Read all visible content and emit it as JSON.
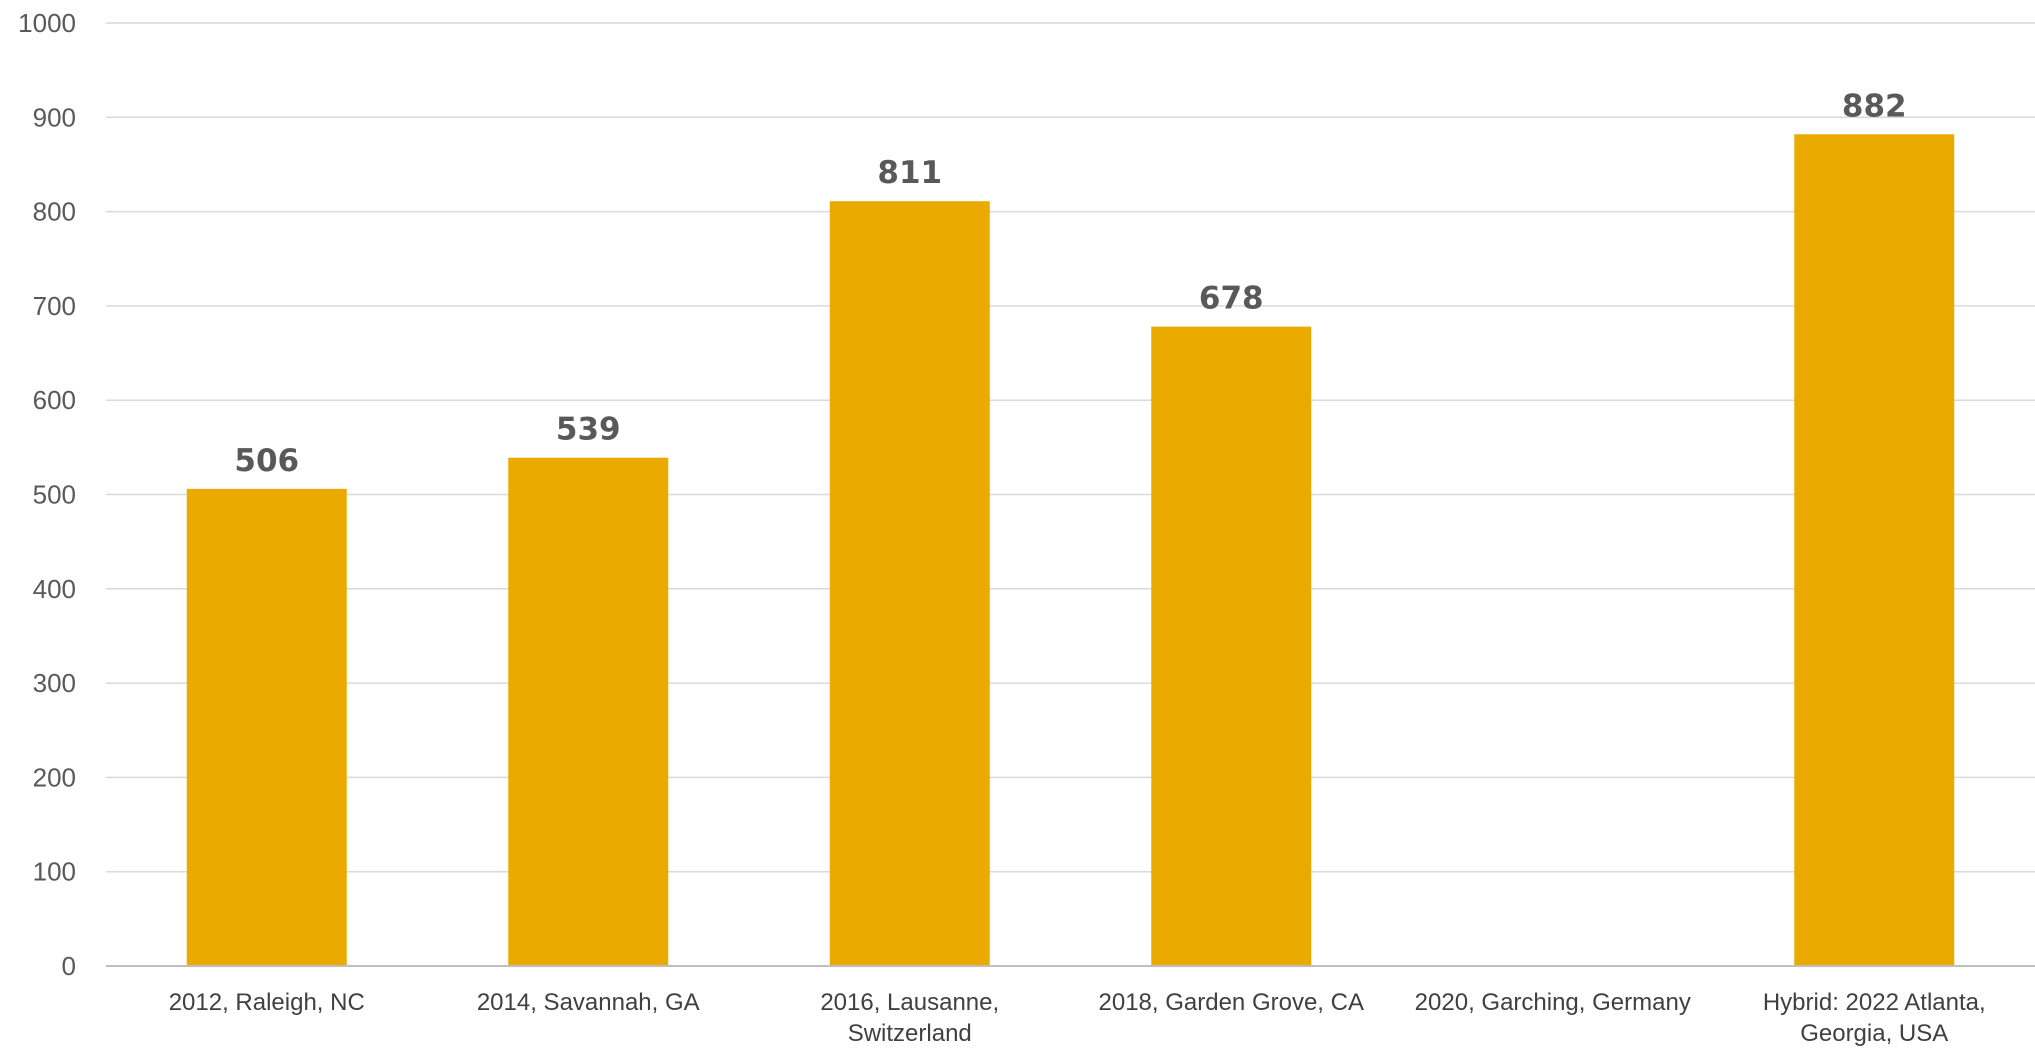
{
  "chart_data": {
    "type": "bar",
    "title": "",
    "xlabel": "",
    "ylabel": "",
    "ylim": [
      0,
      1000
    ],
    "yticks": [
      0,
      100,
      200,
      300,
      400,
      500,
      600,
      700,
      800,
      900,
      1000
    ],
    "grid": true,
    "legend": "none",
    "bar_color": "#EAAA00",
    "categories": [
      [
        "2012, Raleigh, NC"
      ],
      [
        "2014, Savannah, GA"
      ],
      [
        "2016, Lausanne,",
        "Switzerland"
      ],
      [
        "2018, Garden Grove, CA"
      ],
      [
        "2020, Garching, Germany"
      ],
      [
        "Hybrid: 2022 Atlanta,",
        "Georgia, USA"
      ]
    ],
    "values": [
      506,
      539,
      811,
      678,
      null,
      882
    ],
    "data_labels": [
      "506",
      "539",
      "811",
      "678",
      "",
      "882"
    ]
  }
}
